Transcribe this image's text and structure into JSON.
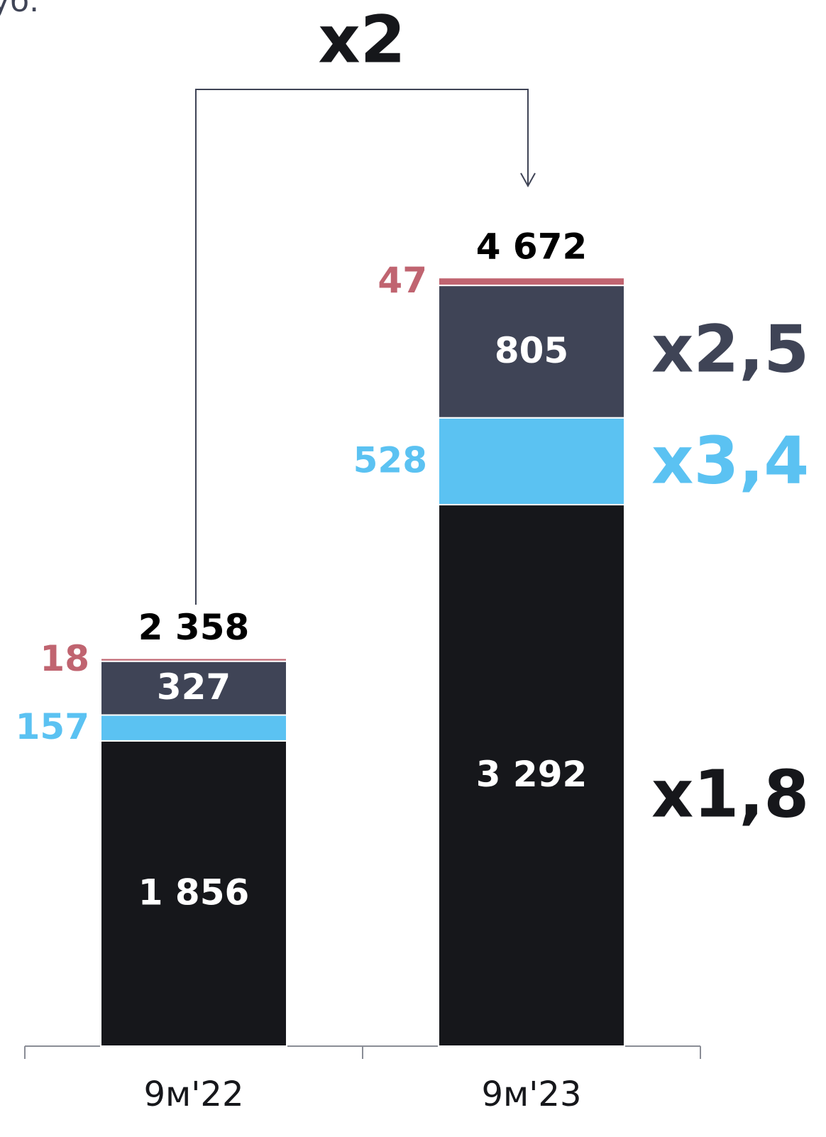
{
  "chart_data": {
    "type": "stacked_bar",
    "subtitle": "руб.",
    "categories": [
      "9м'22",
      "9м'23"
    ],
    "series": [
      {
        "color": "#16171b",
        "values": [
          1856,
          3292
        ],
        "value_labels": [
          "1 856",
          "3 292"
        ]
      },
      {
        "color": "#5bc2f2",
        "values": [
          157,
          528
        ]
      },
      {
        "color": "#3f4456",
        "values": [
          327,
          805
        ]
      },
      {
        "color": "#c06470",
        "values": [
          18,
          47
        ]
      }
    ],
    "totals": [
      2358,
      4672
    ],
    "total_labels": [
      "2 358",
      "4 672"
    ],
    "annotations": [
      "x2",
      "x2,5",
      "x3,4",
      "x1,8"
    ],
    "ylim": [
      0,
      6360
    ]
  }
}
